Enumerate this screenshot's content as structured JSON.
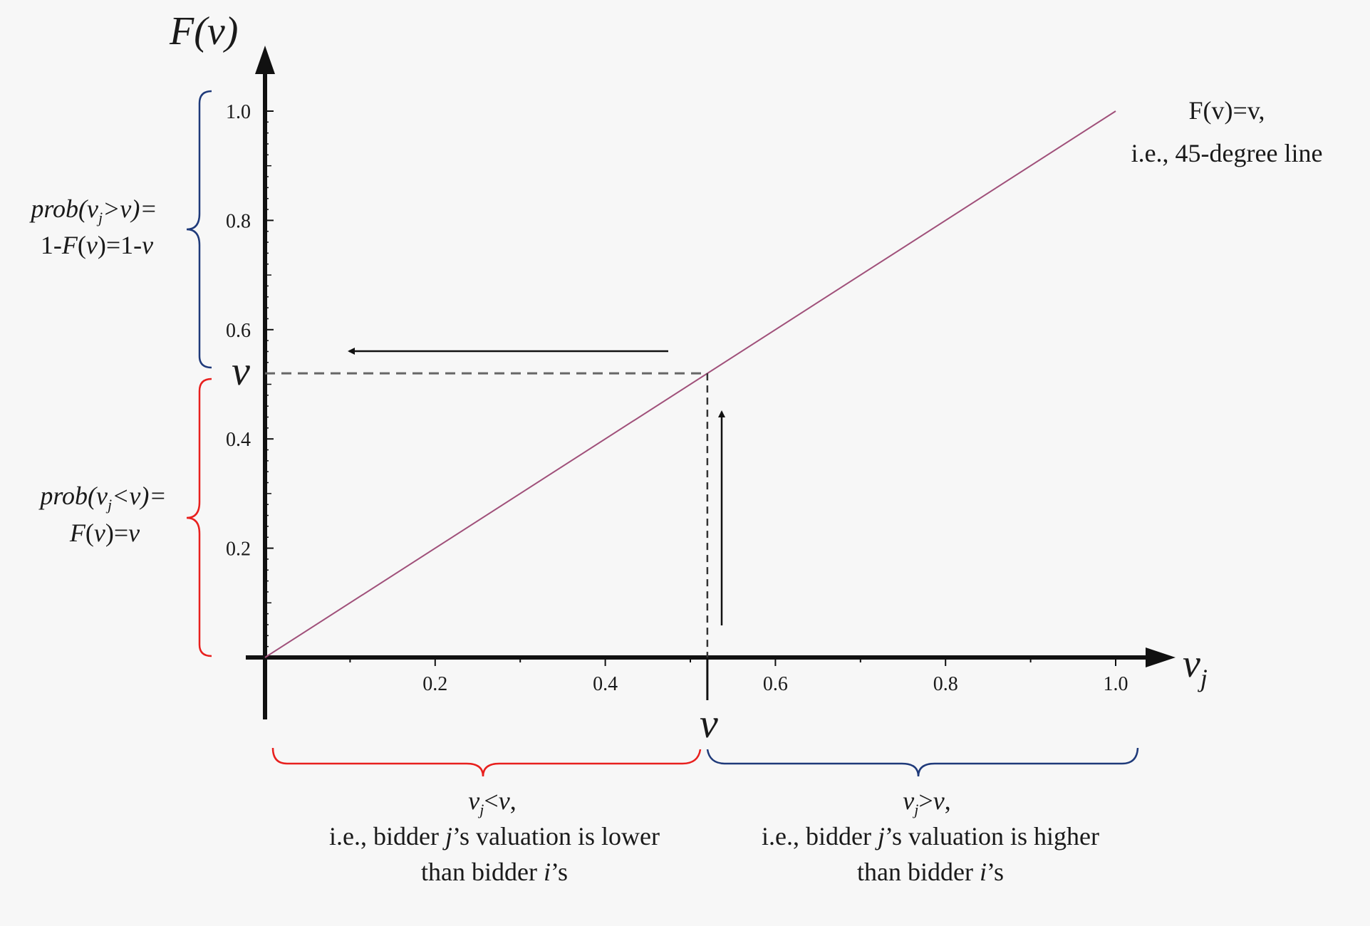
{
  "chart_data": {
    "type": "line",
    "y_axis_title": {
      "main": "F(v)"
    },
    "x_axis_title": {
      "main": "v",
      "sub": "j"
    },
    "xlim": [
      0,
      1.05
    ],
    "ylim": [
      0,
      1.0
    ],
    "x_ticks": [
      0.2,
      0.4,
      0.6,
      0.8,
      1.0
    ],
    "x_tick_labels": [
      "0.2",
      "0.4",
      "0.6",
      "0.8",
      "1.0"
    ],
    "y_ticks": [
      0.2,
      0.4,
      0.6,
      0.8,
      1.0
    ],
    "y_tick_labels": [
      "0.2",
      "0.4",
      "0.6",
      "0.8",
      "1.0"
    ],
    "series": [
      {
        "x": [
          0,
          1.0
        ],
        "y": [
          0,
          1.0
        ],
        "color": "#a0507a"
      }
    ],
    "v_value": 0.52,
    "v_label": "v",
    "line_label": {
      "line1": "F(v)=v,",
      "line2": "i.e., 45-degree line"
    },
    "brace_top_left": {
      "line1": "prob(vj>v)=",
      "line2": "1-F(v)=1-v",
      "color": "#1f3a7a"
    },
    "brace_bottom_left": {
      "line1": "prob(vj<v)=",
      "line2": "F(v)=v",
      "color": "#e8201e"
    },
    "brace_bottom_x_left": {
      "line1": "vj<v,",
      "line2": "i.e., bidder j’s valuation is lower",
      "line3": "than bidder i’s",
      "color": "#e8201e"
    },
    "brace_bottom_x_right": {
      "line1": "vj>v,",
      "line2": "i.e., bidder j’s valuation is higher",
      "line3": "than bidder i’s",
      "color": "#1f3a7a"
    }
  }
}
